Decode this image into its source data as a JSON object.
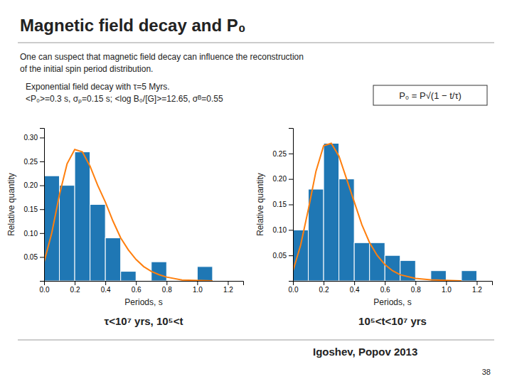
{
  "title": "Magnetic field decay and P₀",
  "annotations": [
    "One can suspect that magnetic field decay can influence the reconstruction",
    "of the initial spin period distribution.",
    "Exponential field decay with τ=5 Myrs.",
    "<P₀>=0.3 s, σₚ=0.15 s; <log B₀/[G]>=12.65, σᴮ=0.55",
    "P₀ = P√(1 − t/τ)",
    "Igoshev, Popov 2013",
    "38"
  ],
  "chart_data": [
    {
      "type": "histogram",
      "subtitle": "τ<10⁷ yrs, 10⁵<t",
      "bins": [
        0.0,
        0.1,
        0.2,
        0.3,
        0.4,
        0.5,
        0.6,
        0.7,
        0.8,
        0.9,
        1.0,
        1.1,
        1.2
      ],
      "values": [
        0.22,
        0.2,
        0.27,
        0.16,
        0.09,
        0.02,
        0.0,
        0.04,
        0.0,
        0.0,
        0.03,
        0.0
      ],
      "series": [
        {
          "type": "line",
          "x": [
            0.0,
            0.05,
            0.1,
            0.15,
            0.2,
            0.25,
            0.3,
            0.35,
            0.4,
            0.45,
            0.5,
            0.55,
            0.6,
            0.65,
            0.7,
            0.75,
            0.8,
            0.9,
            1.1
          ],
          "values": [
            0.04,
            0.1,
            0.18,
            0.245,
            0.275,
            0.27,
            0.24,
            0.2,
            0.165,
            0.125,
            0.09,
            0.065,
            0.045,
            0.03,
            0.02,
            0.013,
            0.008,
            0.002,
            0.0
          ]
        }
      ],
      "x_label": "Periods, s",
      "y_label": "Relative quantity",
      "xlim": [
        0,
        1.3
      ],
      "xticks": [
        {
          "value": 0,
          "label": "0.0"
        },
        0.2,
        0.4,
        0.6,
        0.8,
        {
          "value": 1.0,
          "label": "1.0"
        },
        1.2
      ],
      "ylim": [
        0,
        0.32
      ],
      "yticks": [
        0.05,
        {
          "value": 0.1,
          "label": "0.10"
        },
        0.15,
        {
          "value": 0.2,
          "label": "0.20"
        },
        0.25,
        {
          "value": 0.3,
          "label": "0.30"
        }
      ]
    },
    {
      "type": "histogram",
      "subtitle": "10⁵<t<10⁷ yrs",
      "bins": [
        0.0,
        0.1,
        0.2,
        0.3,
        0.4,
        0.5,
        0.6,
        0.7,
        0.8,
        0.9,
        1.0,
        1.1,
        1.2
      ],
      "values": [
        0.1,
        0.18,
        0.27,
        0.2,
        0.075,
        0.075,
        0.05,
        0.04,
        0.0,
        0.02,
        0.0,
        0.02
      ],
      "series": [
        {
          "type": "line",
          "x": [
            0.0,
            0.05,
            0.1,
            0.15,
            0.2,
            0.25,
            0.3,
            0.35,
            0.4,
            0.45,
            0.5,
            0.55,
            0.6,
            0.65,
            0.7,
            0.8,
            0.9,
            1.0,
            1.1
          ],
          "values": [
            0.02,
            0.07,
            0.14,
            0.215,
            0.265,
            0.27,
            0.245,
            0.2,
            0.155,
            0.11,
            0.075,
            0.05,
            0.032,
            0.02,
            0.012,
            0.005,
            0.002,
            0.001,
            0.0
          ]
        }
      ],
      "x_label": "Periods, s",
      "y_label": "Relative quantity",
      "xlim": [
        0,
        1.3
      ],
      "xticks": [
        {
          "value": 0,
          "label": "0.0"
        },
        0.2,
        0.4,
        0.6,
        0.8,
        {
          "value": 1.0,
          "label": "1.0"
        },
        1.2
      ],
      "ylim": [
        0,
        0.3
      ],
      "yticks": [
        0.05,
        {
          "value": 0.1,
          "label": "0.10"
        },
        0.15,
        {
          "value": 0.2,
          "label": "0.20"
        },
        0.25
      ]
    }
  ]
}
